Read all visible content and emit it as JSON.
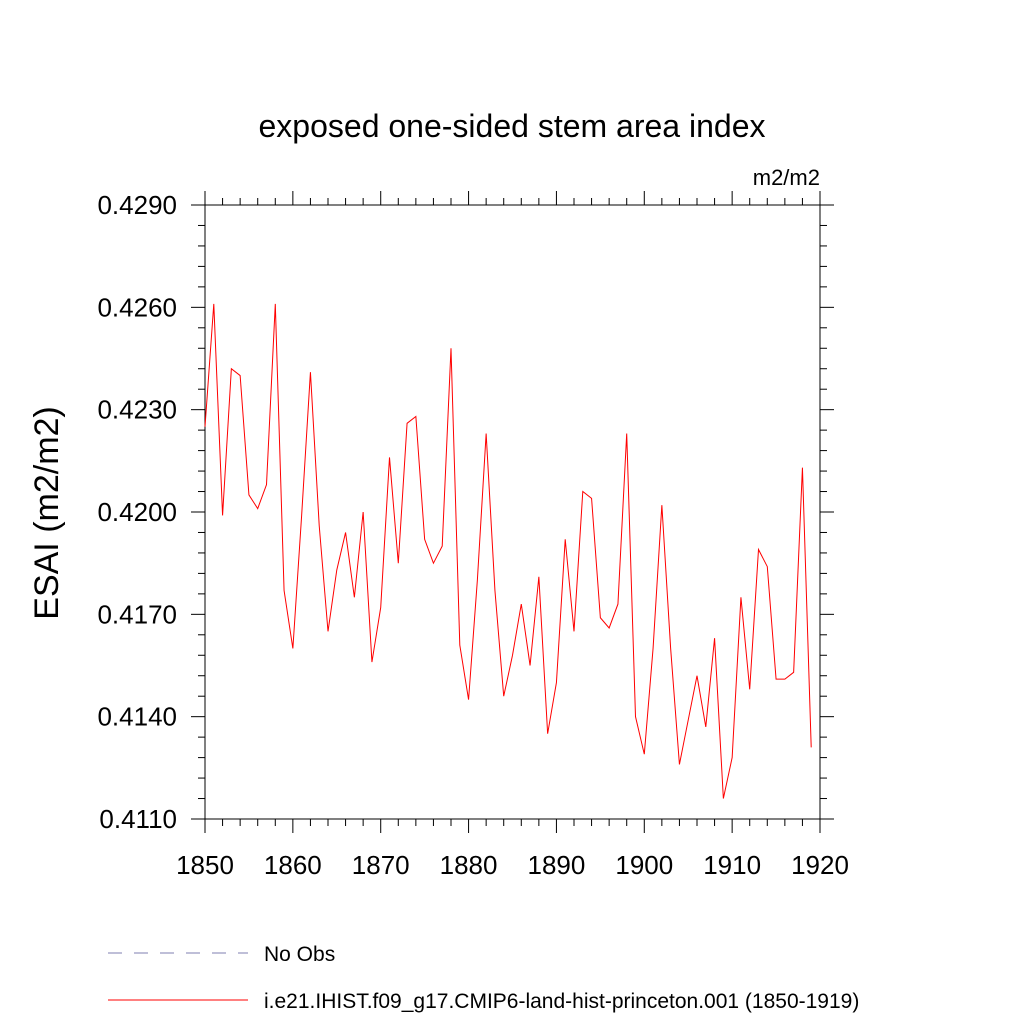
{
  "chart_data": {
    "type": "line",
    "title": "exposed one-sided stem area index",
    "units_label": "m2/m2",
    "ylabel": "ESAI  (m2/m2)",
    "xlabel": "",
    "xlim": [
      1850,
      1920
    ],
    "ylim": [
      0.411,
      0.429
    ],
    "xticks": [
      1850,
      1860,
      1870,
      1880,
      1890,
      1900,
      1910,
      1920
    ],
    "xtick_labels": [
      "1850",
      "1860",
      "1870",
      "1880",
      "1890",
      "1900",
      "1910",
      "1920"
    ],
    "yticks": [
      0.411,
      0.414,
      0.417,
      0.42,
      0.423,
      0.426,
      0.429
    ],
    "ytick_labels": [
      "0.4110",
      "0.4140",
      "0.4170",
      "0.4200",
      "0.4230",
      "0.4260",
      "0.4290"
    ],
    "series": [
      {
        "name": "i.e21.IHIST.f09_g17.CMIP6-land-hist-princeton.001 (1850-1919)",
        "color": "#ff0000",
        "style": "solid",
        "x": [
          1850,
          1851,
          1852,
          1853,
          1854,
          1855,
          1856,
          1857,
          1858,
          1859,
          1860,
          1861,
          1862,
          1863,
          1864,
          1865,
          1866,
          1867,
          1868,
          1869,
          1870,
          1871,
          1872,
          1873,
          1874,
          1875,
          1876,
          1877,
          1878,
          1879,
          1880,
          1881,
          1882,
          1883,
          1884,
          1885,
          1886,
          1887,
          1888,
          1889,
          1890,
          1891,
          1892,
          1893,
          1894,
          1895,
          1896,
          1897,
          1898,
          1899,
          1900,
          1901,
          1902,
          1903,
          1904,
          1905,
          1906,
          1907,
          1908,
          1909,
          1910,
          1911,
          1912,
          1913,
          1914,
          1915,
          1916,
          1917,
          1918,
          1919
        ],
        "values": [
          0.4225,
          0.4261,
          0.4199,
          0.4242,
          0.424,
          0.4205,
          0.4201,
          0.4208,
          0.4261,
          0.4177,
          0.416,
          0.4199,
          0.4241,
          0.4196,
          0.4165,
          0.4183,
          0.4194,
          0.4175,
          0.42,
          0.4156,
          0.4172,
          0.4216,
          0.4185,
          0.4226,
          0.4228,
          0.4192,
          0.4185,
          0.419,
          0.4248,
          0.4161,
          0.4145,
          0.418,
          0.4223,
          0.4177,
          0.4146,
          0.4158,
          0.4173,
          0.4155,
          0.4181,
          0.4135,
          0.415,
          0.4192,
          0.4165,
          0.4206,
          0.4204,
          0.4169,
          0.4166,
          0.4173,
          0.4223,
          0.414,
          0.4129,
          0.416,
          0.4202,
          0.416,
          0.4126,
          0.4139,
          0.4152,
          0.4137,
          0.4163,
          0.4116,
          0.4128,
          0.4175,
          0.4148,
          0.4189,
          0.4184,
          0.4151,
          0.4151,
          0.4153,
          0.4213,
          0.4131
        ]
      },
      {
        "name": "No Obs",
        "color": "#7f7fb2",
        "style": "dashed",
        "x": [],
        "values": []
      }
    ],
    "legend_position": "bottom-left",
    "grid": false
  }
}
